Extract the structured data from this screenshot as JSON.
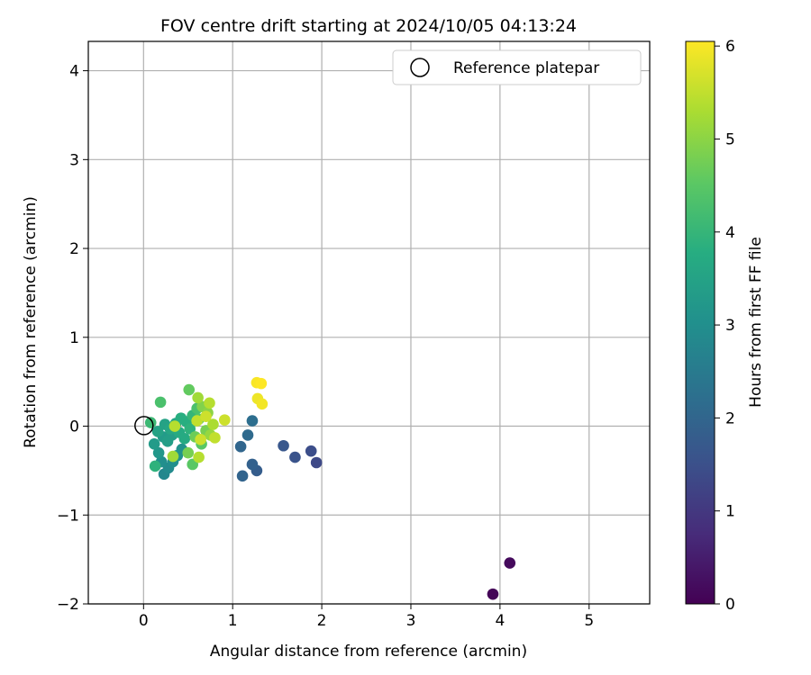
{
  "chart_data": {
    "type": "scatter",
    "title": "FOV centre drift starting at 2024/10/05 04:13:24",
    "xlabel": "Angular distance from reference (arcmin)",
    "ylabel": "Rotation from reference (arcmin)",
    "xlim": [
      -0.62,
      5.68
    ],
    "ylim": [
      -2.0,
      4.33
    ],
    "xticks": [
      0,
      1,
      2,
      3,
      4,
      5
    ],
    "yticks": [
      -2,
      -1,
      0,
      1,
      2,
      3,
      4
    ],
    "grid": true,
    "colormap": "viridis",
    "colorbar": {
      "label": "Hours from first FF file",
      "min": 0,
      "max": 6.05,
      "ticks": [
        0,
        1,
        2,
        3,
        4,
        5,
        6
      ]
    },
    "legend": {
      "position": "top-right",
      "entries": [
        {
          "label": "Reference platepar",
          "marker": "open-circle",
          "color": "#000000"
        }
      ]
    },
    "reference_point": {
      "x": 0,
      "y": 0,
      "label": "Reference platepar"
    },
    "points": [
      {
        "x": 3.92,
        "y": -1.89,
        "hours": 0.05
      },
      {
        "x": 4.11,
        "y": -1.54,
        "hours": 0.15
      },
      {
        "x": 1.94,
        "y": -0.41,
        "hours": 1.35
      },
      {
        "x": 1.88,
        "y": -0.28,
        "hours": 1.45
      },
      {
        "x": 1.7,
        "y": -0.35,
        "hours": 1.55
      },
      {
        "x": 1.57,
        "y": -0.22,
        "hours": 1.65
      },
      {
        "x": 1.27,
        "y": -0.5,
        "hours": 1.8
      },
      {
        "x": 1.22,
        "y": -0.43,
        "hours": 1.9
      },
      {
        "x": 1.11,
        "y": -0.56,
        "hours": 1.95
      },
      {
        "x": 1.09,
        "y": -0.23,
        "hours": 2.0
      },
      {
        "x": 1.17,
        "y": -0.1,
        "hours": 2.1
      },
      {
        "x": 1.22,
        "y": 0.06,
        "hours": 2.2
      },
      {
        "x": 0.23,
        "y": -0.54,
        "hours": 2.8
      },
      {
        "x": 0.28,
        "y": -0.47,
        "hours": 2.9
      },
      {
        "x": 0.2,
        "y": -0.4,
        "hours": 3.0
      },
      {
        "x": 0.33,
        "y": -0.4,
        "hours": 3.0
      },
      {
        "x": 0.38,
        "y": -0.33,
        "hours": 3.1
      },
      {
        "x": 0.43,
        "y": -0.26,
        "hours": 3.1
      },
      {
        "x": 0.17,
        "y": -0.3,
        "hours": 3.2
      },
      {
        "x": 0.12,
        "y": -0.2,
        "hours": 3.3
      },
      {
        "x": 0.22,
        "y": -0.12,
        "hours": 3.3
      },
      {
        "x": 0.27,
        "y": -0.17,
        "hours": 3.4
      },
      {
        "x": 0.32,
        "y": -0.1,
        "hours": 3.4
      },
      {
        "x": 0.16,
        "y": -0.06,
        "hours": 3.5
      },
      {
        "x": 0.24,
        "y": 0.02,
        "hours": 3.5
      },
      {
        "x": 0.3,
        "y": -0.03,
        "hours": 3.6
      },
      {
        "x": 0.36,
        "y": 0.03,
        "hours": 3.6
      },
      {
        "x": 0.4,
        "y": -0.07,
        "hours": 3.7
      },
      {
        "x": 0.46,
        "y": -0.14,
        "hours": 3.7
      },
      {
        "x": 0.42,
        "y": 0.09,
        "hours": 3.8
      },
      {
        "x": 0.48,
        "y": 0.05,
        "hours": 3.8
      },
      {
        "x": 0.13,
        "y": -0.45,
        "hours": 3.9
      },
      {
        "x": 0.52,
        "y": -0.03,
        "hours": 3.9
      },
      {
        "x": 0.55,
        "y": 0.12,
        "hours": 4.0
      },
      {
        "x": 0.08,
        "y": 0.04,
        "hours": 4.1
      },
      {
        "x": 0.19,
        "y": 0.27,
        "hours": 4.3
      },
      {
        "x": 0.6,
        "y": 0.2,
        "hours": 4.3
      },
      {
        "x": 0.62,
        "y": 0.08,
        "hours": 4.4
      },
      {
        "x": 0.55,
        "y": -0.43,
        "hours": 4.5
      },
      {
        "x": 0.65,
        "y": -0.2,
        "hours": 4.5
      },
      {
        "x": 0.51,
        "y": 0.41,
        "hours": 4.6
      },
      {
        "x": 0.58,
        "y": -0.12,
        "hours": 4.7
      },
      {
        "x": 0.5,
        "y": -0.3,
        "hours": 4.8
      },
      {
        "x": 0.7,
        "y": -0.05,
        "hours": 4.8
      },
      {
        "x": 0.66,
        "y": 0.22,
        "hours": 4.9
      },
      {
        "x": 0.72,
        "y": 0.15,
        "hours": 5.0
      },
      {
        "x": 0.75,
        "y": -0.1,
        "hours": 5.1
      },
      {
        "x": 0.33,
        "y": -0.34,
        "hours": 5.2
      },
      {
        "x": 0.61,
        "y": 0.32,
        "hours": 5.2
      },
      {
        "x": 0.78,
        "y": 0.02,
        "hours": 5.3
      },
      {
        "x": 0.74,
        "y": 0.26,
        "hours": 5.4
      },
      {
        "x": 0.62,
        "y": -0.35,
        "hours": 5.4
      },
      {
        "x": 0.35,
        "y": 0.0,
        "hours": 5.4
      },
      {
        "x": 0.6,
        "y": 0.06,
        "hours": 5.5
      },
      {
        "x": 0.8,
        "y": -0.13,
        "hours": 5.5
      },
      {
        "x": 0.7,
        "y": 0.11,
        "hours": 5.6
      },
      {
        "x": 0.91,
        "y": 0.07,
        "hours": 5.6
      },
      {
        "x": 0.64,
        "y": -0.15,
        "hours": 5.6
      },
      {
        "x": 1.28,
        "y": 0.31,
        "hours": 5.9
      },
      {
        "x": 1.33,
        "y": 0.25,
        "hours": 5.95
      },
      {
        "x": 1.27,
        "y": 0.49,
        "hours": 6.0
      },
      {
        "x": 1.32,
        "y": 0.48,
        "hours": 6.05
      }
    ]
  }
}
